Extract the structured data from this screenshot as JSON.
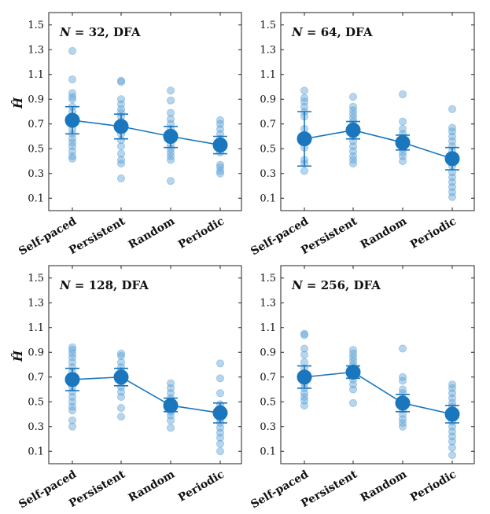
{
  "chart_data": [
    {
      "type": "scatter",
      "title_prefix": "N = ",
      "n": "32",
      "title_suffix": ",  DFA",
      "ylabel": "Ĥ",
      "ylim": [
        0,
        1.6
      ],
      "yticks": [
        "0.1",
        "0.3",
        "0.5",
        "0.7",
        "0.9",
        "1.1",
        "1.3",
        "1.5"
      ],
      "categories": [
        "Self-paced",
        "Persistent",
        "Random",
        "Periodic"
      ],
      "mean": [
        0.73,
        0.68,
        0.6,
        0.53
      ],
      "error_low": [
        0.62,
        0.58,
        0.51,
        0.46
      ],
      "error_high": [
        0.84,
        0.78,
        0.68,
        0.6
      ],
      "points": [
        [
          1.29,
          1.06,
          0.95,
          0.92,
          0.9,
          0.84,
          0.8,
          0.76,
          0.73,
          0.7,
          0.66,
          0.62,
          0.58,
          0.55,
          0.52,
          0.48,
          0.44,
          0.42
        ],
        [
          1.05,
          1.04,
          0.9,
          0.86,
          0.82,
          0.79,
          0.76,
          0.72,
          0.69,
          0.66,
          0.62,
          0.57,
          0.52,
          0.46,
          0.41,
          0.38,
          0.26
        ],
        [
          0.97,
          0.89,
          0.79,
          0.74,
          0.7,
          0.66,
          0.63,
          0.6,
          0.57,
          0.53,
          0.5,
          0.47,
          0.44,
          0.41,
          0.24
        ],
        [
          0.73,
          0.7,
          0.66,
          0.62,
          0.58,
          0.55,
          0.52,
          0.5,
          0.47,
          0.37,
          0.35,
          0.32,
          0.3
        ]
      ]
    },
    {
      "type": "scatter",
      "title_prefix": "N = ",
      "n": "64",
      "title_suffix": ",  DFA",
      "ylabel": "",
      "ylim": [
        0,
        1.6
      ],
      "yticks": [
        "0.1",
        "0.3",
        "0.5",
        "0.7",
        "0.9",
        "1.1",
        "1.3",
        "1.5"
      ],
      "categories": [
        "Self-paced",
        "Persistent",
        "Random",
        "Periodic"
      ],
      "mean": [
        0.58,
        0.65,
        0.55,
        0.42
      ],
      "error_low": [
        0.36,
        0.58,
        0.49,
        0.33
      ],
      "error_high": [
        0.8,
        0.72,
        0.61,
        0.51
      ],
      "points": [
        [
          0.97,
          0.91,
          0.88,
          0.84,
          0.8,
          0.76,
          0.66,
          0.61,
          0.57,
          0.51,
          0.41,
          0.38,
          0.32
        ],
        [
          0.92,
          0.84,
          0.81,
          0.78,
          0.75,
          0.72,
          0.69,
          0.66,
          0.63,
          0.6,
          0.56,
          0.52,
          0.48,
          0.44,
          0.41,
          0.38
        ],
        [
          0.94,
          0.72,
          0.66,
          0.62,
          0.59,
          0.56,
          0.53,
          0.5,
          0.47,
          0.44,
          0.4
        ],
        [
          0.82,
          0.67,
          0.64,
          0.6,
          0.56,
          0.52,
          0.48,
          0.44,
          0.4,
          0.36,
          0.31,
          0.27,
          0.23,
          0.19,
          0.15,
          0.11
        ]
      ]
    },
    {
      "type": "scatter",
      "title_prefix": "N = ",
      "n": "128",
      "title_suffix": ",  DFA",
      "ylabel": "Ĥ",
      "ylim": [
        0,
        1.6
      ],
      "yticks": [
        "0.1",
        "0.3",
        "0.5",
        "0.7",
        "0.9",
        "1.1",
        "1.3",
        "1.5"
      ],
      "categories": [
        "Self-paced",
        "Persistent",
        "Random",
        "Periodic"
      ],
      "mean": [
        0.68,
        0.7,
        0.47,
        0.41
      ],
      "error_low": [
        0.59,
        0.63,
        0.42,
        0.33
      ],
      "error_high": [
        0.77,
        0.77,
        0.53,
        0.49
      ],
      "points": [
        [
          0.94,
          0.92,
          0.89,
          0.86,
          0.82,
          0.78,
          0.74,
          0.7,
          0.66,
          0.62,
          0.58,
          0.54,
          0.5,
          0.46,
          0.43,
          0.35,
          0.3
        ],
        [
          0.89,
          0.87,
          0.82,
          0.78,
          0.75,
          0.72,
          0.69,
          0.66,
          0.62,
          0.58,
          0.54,
          0.45,
          0.38
        ],
        [
          0.65,
          0.61,
          0.57,
          0.53,
          0.49,
          0.45,
          0.42,
          0.39,
          0.35,
          0.29
        ],
        [
          0.81,
          0.69,
          0.57,
          0.48,
          0.45,
          0.42,
          0.39,
          0.36,
          0.33,
          0.29,
          0.25,
          0.21,
          0.16,
          0.1
        ]
      ]
    },
    {
      "type": "scatter",
      "title_prefix": "N = ",
      "n": "256",
      "title_suffix": ",  DFA",
      "ylabel": "",
      "ylim": [
        0,
        1.6
      ],
      "yticks": [
        "0.1",
        "0.3",
        "0.5",
        "0.7",
        "0.9",
        "1.1",
        "1.3",
        "1.5"
      ],
      "categories": [
        "Self-paced",
        "Persistent",
        "Random",
        "Periodic"
      ],
      "mean": [
        0.7,
        0.74,
        0.49,
        0.4
      ],
      "error_low": [
        0.61,
        0.69,
        0.42,
        0.33
      ],
      "error_high": [
        0.79,
        0.79,
        0.56,
        0.47
      ],
      "points": [
        [
          1.05,
          1.04,
          0.93,
          0.88,
          0.82,
          0.77,
          0.73,
          0.69,
          0.65,
          0.61,
          0.57,
          0.54,
          0.51,
          0.47
        ],
        [
          0.92,
          0.89,
          0.86,
          0.83,
          0.8,
          0.77,
          0.74,
          0.71,
          0.68,
          0.64,
          0.6,
          0.49
        ],
        [
          0.93,
          0.7,
          0.67,
          0.6,
          0.57,
          0.52,
          0.48,
          0.44,
          0.4,
          0.36,
          0.33,
          0.3
        ],
        [
          0.64,
          0.61,
          0.57,
          0.53,
          0.49,
          0.46,
          0.43,
          0.4,
          0.37,
          0.34,
          0.3,
          0.26,
          0.22,
          0.18,
          0.13,
          0.07
        ]
      ]
    }
  ],
  "style": {
    "point_color": "#5fa3d8",
    "point_opacity": 0.45,
    "mean_color": "#1a76bd",
    "axis_color": "#222222"
  }
}
